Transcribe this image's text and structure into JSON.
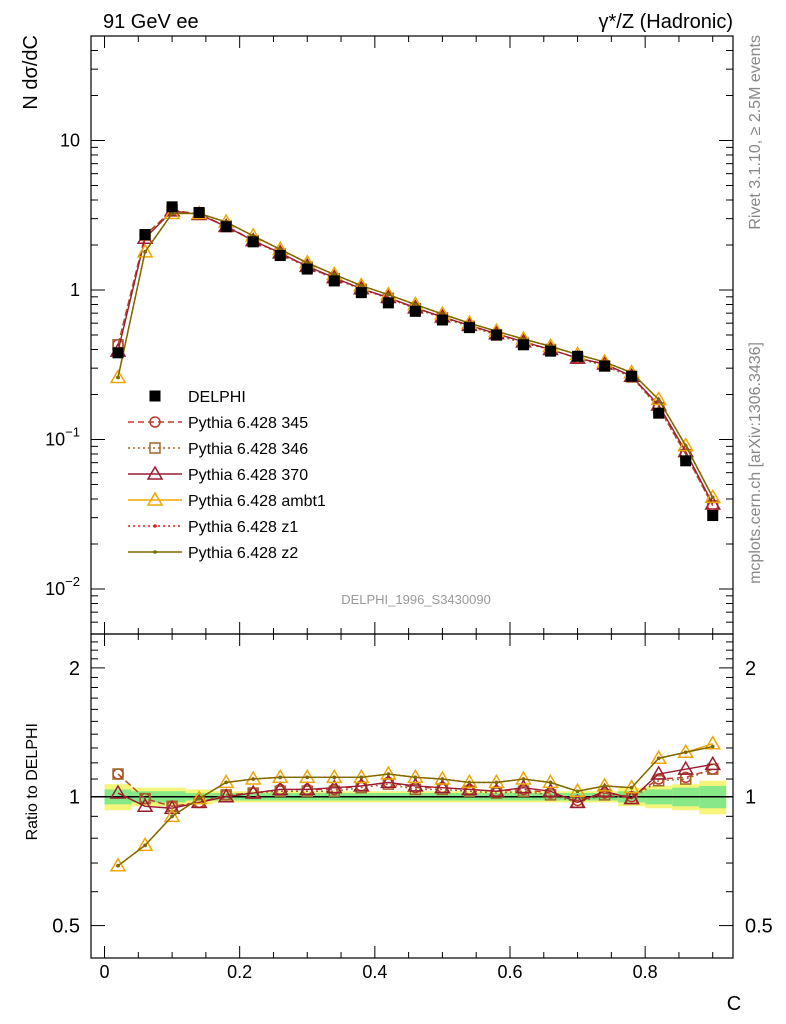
{
  "header": {
    "left": "91 GeV ee",
    "right": "γ*/Z (Hadronic)"
  },
  "side_labels": {
    "top": "Rivet 3.1.10, ≥ 2.5M events",
    "bottom": "mcplots.cern.ch [arXiv:1306.3436]"
  },
  "watermark": "DELPHI_1996_S3430090",
  "chart_data": [
    {
      "type": "line",
      "panel": "main",
      "ylabel": "N dσ/dC",
      "yscale": "log",
      "xlim": [
        -0.02,
        0.93
      ],
      "ylim": [
        0.005,
        50
      ],
      "y_ticks": [
        {
          "value": 10,
          "label": "10"
        },
        {
          "value": 1,
          "label": "1"
        },
        {
          "value": 0.1,
          "label": "10",
          "exp": "−1"
        },
        {
          "value": 0.01,
          "label": "10",
          "exp": "−2"
        }
      ],
      "legend_placement": "center-left",
      "x": [
        0.02,
        0.06,
        0.1,
        0.14,
        0.18,
        0.22,
        0.26,
        0.3,
        0.34,
        0.38,
        0.42,
        0.46,
        0.5,
        0.54,
        0.58,
        0.62,
        0.66,
        0.7,
        0.74,
        0.78,
        0.82,
        0.86,
        0.9
      ],
      "series": [
        {
          "name": "DELPHI",
          "color": "#000000",
          "marker": "square",
          "line": "none",
          "values": [
            0.38,
            2.35,
            3.6,
            3.3,
            2.65,
            2.1,
            1.7,
            1.38,
            1.15,
            0.96,
            0.82,
            0.72,
            0.63,
            0.56,
            0.5,
            0.43,
            0.39,
            0.36,
            0.31,
            0.265,
            0.15,
            0.072,
            0.031
          ]
        },
        {
          "name": "Pythia 6.428 345",
          "color": "#c0392b",
          "marker": "circle-open",
          "line": "dashed",
          "values": [
            0.43,
            2.32,
            3.42,
            3.22,
            2.68,
            2.15,
            1.76,
            1.43,
            1.2,
            1.02,
            0.89,
            0.76,
            0.66,
            0.58,
            0.51,
            0.45,
            0.4,
            0.35,
            0.32,
            0.265,
            0.165,
            0.08,
            0.036
          ]
        },
        {
          "name": "Pythia 6.428 346",
          "color": "#a0662a",
          "marker": "square-open",
          "line": "dotted",
          "values": [
            0.43,
            2.32,
            3.42,
            3.22,
            2.68,
            2.13,
            1.74,
            1.42,
            1.19,
            1.01,
            0.88,
            0.75,
            0.65,
            0.57,
            0.5,
            0.44,
            0.4,
            0.35,
            0.31,
            0.262,
            0.163,
            0.079,
            0.036
          ]
        },
        {
          "name": "Pythia 6.428 370",
          "color": "#9b1c31",
          "marker": "triangle-open",
          "line": "solid",
          "values": [
            0.39,
            2.22,
            3.38,
            3.2,
            2.66,
            2.14,
            1.77,
            1.44,
            1.21,
            1.02,
            0.89,
            0.76,
            0.66,
            0.58,
            0.51,
            0.45,
            0.4,
            0.35,
            0.32,
            0.265,
            0.17,
            0.083,
            0.037
          ]
        },
        {
          "name": "Pythia 6.428 ambt1",
          "color": "#f0a500",
          "marker": "triangle-open",
          "line": "solid",
          "values": [
            0.26,
            1.8,
            3.25,
            3.25,
            2.85,
            2.3,
            1.87,
            1.52,
            1.27,
            1.07,
            0.93,
            0.8,
            0.69,
            0.6,
            0.53,
            0.47,
            0.42,
            0.37,
            0.33,
            0.28,
            0.185,
            0.091,
            0.041
          ]
        },
        {
          "name": "Pythia 6.428 z1",
          "color": "#e02020",
          "marker": "dot",
          "line": "dotted",
          "values": [
            0.26,
            1.8,
            3.25,
            3.25,
            2.85,
            2.3,
            1.87,
            1.52,
            1.27,
            1.07,
            0.93,
            0.8,
            0.69,
            0.6,
            0.53,
            0.47,
            0.42,
            0.37,
            0.33,
            0.28,
            0.185,
            0.091,
            0.041
          ]
        },
        {
          "name": "Pythia 6.428 z2",
          "color": "#7a6a00",
          "marker": "dot",
          "line": "solid",
          "values": [
            0.26,
            1.8,
            3.25,
            3.25,
            2.85,
            2.3,
            1.87,
            1.52,
            1.27,
            1.07,
            0.93,
            0.8,
            0.69,
            0.6,
            0.53,
            0.47,
            0.42,
            0.37,
            0.33,
            0.28,
            0.185,
            0.091,
            0.041
          ]
        }
      ]
    },
    {
      "type": "line",
      "panel": "ratio",
      "ylabel": "Ratio to DELPHI",
      "xlabel": "C",
      "yscale": "log",
      "xlim": [
        -0.02,
        0.93
      ],
      "ylim": [
        0.42,
        2.4
      ],
      "y_ticks": [
        {
          "value": 2,
          "label": "2"
        },
        {
          "value": 1,
          "label": "1"
        },
        {
          "value": 0.5,
          "label": "0.5"
        }
      ],
      "x_ticks": [
        {
          "value": 0,
          "label": "0"
        },
        {
          "value": 0.2,
          "label": "0.2"
        },
        {
          "value": 0.4,
          "label": "0.4"
        },
        {
          "value": 0.6,
          "label": "0.6"
        },
        {
          "value": 0.8,
          "label": "0.8"
        }
      ],
      "band_inner": [
        0.04,
        0.03,
        0.03,
        0.02,
        0.02,
        0.02,
        0.02,
        0.02,
        0.02,
        0.02,
        0.02,
        0.02,
        0.02,
        0.02,
        0.02,
        0.02,
        0.02,
        0.02,
        0.02,
        0.03,
        0.04,
        0.05,
        0.06
      ],
      "band_outer": [
        0.07,
        0.05,
        0.05,
        0.04,
        0.03,
        0.03,
        0.03,
        0.03,
        0.03,
        0.03,
        0.03,
        0.03,
        0.03,
        0.03,
        0.03,
        0.03,
        0.03,
        0.03,
        0.03,
        0.05,
        0.06,
        0.07,
        0.09
      ],
      "band_colors": {
        "inner": "#86e886",
        "outer": "#f5f57a"
      },
      "x": [
        0.02,
        0.06,
        0.1,
        0.14,
        0.18,
        0.22,
        0.26,
        0.3,
        0.34,
        0.38,
        0.42,
        0.46,
        0.5,
        0.54,
        0.58,
        0.62,
        0.66,
        0.7,
        0.74,
        0.78,
        0.82,
        0.86,
        0.9
      ],
      "series": [
        {
          "name": "Pythia 6.428 345",
          "values": [
            1.13,
            0.99,
            0.95,
            0.97,
            1.01,
            1.02,
            1.04,
            1.04,
            1.04,
            1.06,
            1.08,
            1.05,
            1.05,
            1.04,
            1.03,
            1.04,
            1.02,
            0.98,
            1.02,
            1.0,
            1.1,
            1.11,
            1.16
          ]
        },
        {
          "name": "Pythia 6.428 346",
          "values": [
            1.13,
            0.99,
            0.95,
            0.97,
            1.01,
            1.02,
            1.03,
            1.03,
            1.03,
            1.05,
            1.07,
            1.04,
            1.04,
            1.03,
            1.02,
            1.03,
            1.01,
            0.97,
            1.01,
            0.99,
            1.09,
            1.1,
            1.16
          ]
        },
        {
          "name": "Pythia 6.428 370",
          "values": [
            1.02,
            0.95,
            0.94,
            0.97,
            1.0,
            1.02,
            1.04,
            1.04,
            1.05,
            1.06,
            1.08,
            1.06,
            1.05,
            1.04,
            1.03,
            1.05,
            1.03,
            0.97,
            1.03,
            0.99,
            1.13,
            1.16,
            1.19
          ]
        },
        {
          "name": "Pythia 6.428 ambt1",
          "values": [
            0.69,
            0.77,
            0.9,
            0.99,
            1.08,
            1.1,
            1.11,
            1.11,
            1.11,
            1.11,
            1.13,
            1.11,
            1.1,
            1.08,
            1.08,
            1.1,
            1.08,
            1.03,
            1.06,
            1.05,
            1.23,
            1.27,
            1.33
          ]
        },
        {
          "name": "Pythia 6.428 z1",
          "values": [
            0.69,
            0.77,
            0.9,
            0.99,
            1.08,
            1.1,
            1.11,
            1.11,
            1.11,
            1.11,
            1.13,
            1.11,
            1.1,
            1.08,
            1.08,
            1.1,
            1.08,
            1.03,
            1.06,
            1.05,
            1.23,
            1.27,
            1.31
          ]
        },
        {
          "name": "Pythia 6.428 z2",
          "values": [
            0.69,
            0.77,
            0.9,
            0.99,
            1.08,
            1.1,
            1.11,
            1.11,
            1.11,
            1.11,
            1.13,
            1.11,
            1.1,
            1.08,
            1.08,
            1.1,
            1.08,
            1.03,
            1.06,
            1.05,
            1.23,
            1.27,
            1.31
          ]
        }
      ]
    }
  ]
}
